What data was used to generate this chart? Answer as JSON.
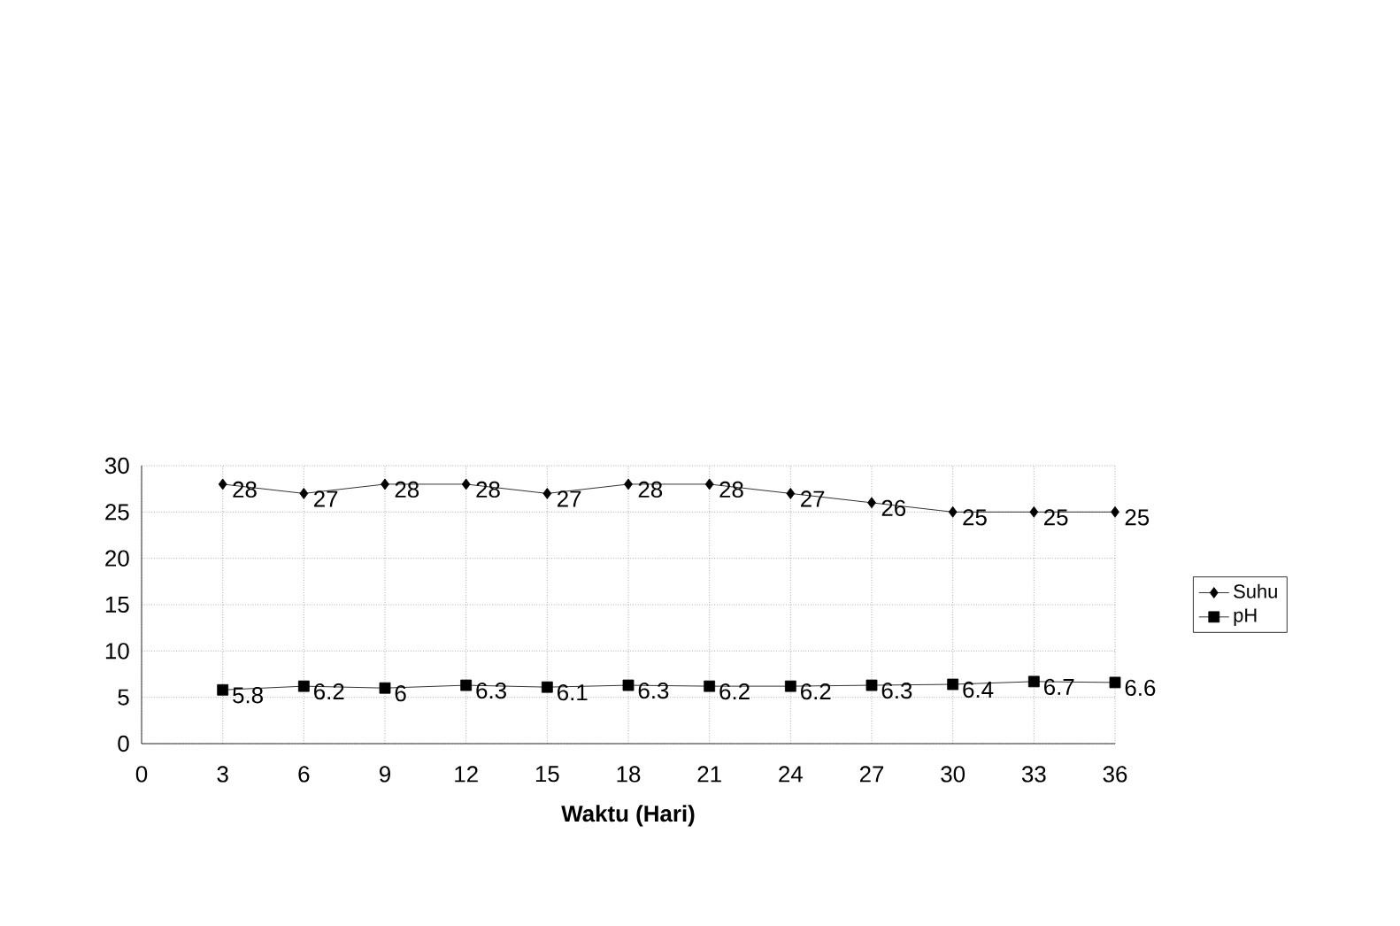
{
  "chart_data": {
    "type": "line",
    "xlabel": "Waktu (Hari)",
    "x": [
      3,
      6,
      9,
      12,
      15,
      18,
      21,
      24,
      27,
      30,
      33,
      36
    ],
    "series": [
      {
        "name": "Suhu",
        "color": "#000000",
        "marker": "diamond",
        "values": [
          28,
          27,
          28,
          28,
          27,
          28,
          28,
          27,
          26,
          25,
          25,
          25
        ]
      },
      {
        "name": "pH",
        "color": "#000000",
        "marker": "square",
        "values": [
          5.8,
          6.2,
          6,
          6.3,
          6.1,
          6.3,
          6.2,
          6.2,
          6.3,
          6.4,
          6.7,
          6.6
        ]
      }
    ],
    "xlim": [
      0,
      36
    ],
    "xticks": [
      0,
      3,
      6,
      9,
      12,
      15,
      18,
      21,
      24,
      27,
      30,
      33,
      36
    ],
    "ylim": [
      0,
      30
    ],
    "yticks": [
      0,
      5,
      10,
      15,
      20,
      25,
      30
    ],
    "grid": true,
    "legend": "right",
    "data_labels": true
  }
}
